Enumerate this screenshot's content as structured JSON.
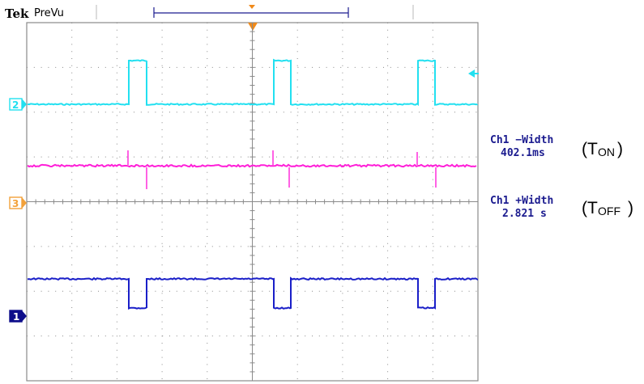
{
  "header": {
    "brand": "Tek",
    "mode": "PreVu"
  },
  "channels": [
    {
      "id": "2",
      "color": "#22e0f0",
      "marker_color": "#22e0f0"
    },
    {
      "id": "3",
      "color": "#ff1ed8",
      "marker_color": "#f2a13a"
    },
    {
      "id": "1",
      "color": "#1a1fc8",
      "marker_color": "#0d0d8a"
    }
  ],
  "measurements": [
    {
      "label": "Ch1 −Width",
      "value": "402.1ms",
      "annotation_main": "T",
      "annotation_sub": "ON",
      "annotation_open": "(",
      "annotation_close": ")"
    },
    {
      "label": "Ch1 +Width",
      "value": "2.821 s",
      "annotation_main": "T",
      "annotation_sub": "OFF",
      "annotation_open": "(",
      "annotation_close": ")"
    }
  ],
  "colors": {
    "grid": "#8a8a8a",
    "trigger_marker": "#f08a1a",
    "record_bar": "#1b1b8f",
    "cyan_trace": "#22e0f0",
    "magenta_trace": "#ff1ed8",
    "blue_trace": "#1a1fc8"
  },
  "icons": [
    "trigger-position-icon",
    "trigger-level-arrow-icon",
    "channel-2-marker-icon",
    "channel-3-marker-icon",
    "channel-1-marker-icon"
  ]
}
